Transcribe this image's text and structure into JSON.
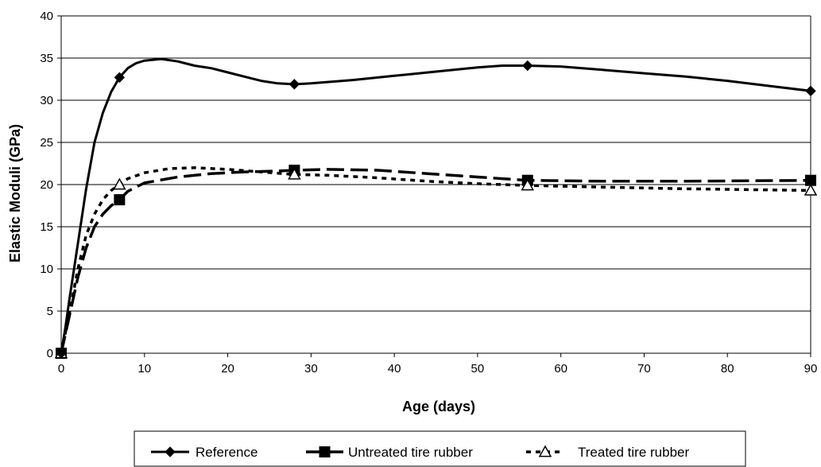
{
  "chart_data": {
    "type": "line",
    "title": "",
    "xlabel": "Age (days)",
    "ylabel": "Elastic Moduli (GPa)",
    "xlim": [
      0,
      90
    ],
    "ylim": [
      0,
      40
    ],
    "x_ticks": [
      "0",
      "10",
      "20",
      "30",
      "40",
      "50",
      "60",
      "70",
      "80",
      "90"
    ],
    "y_ticks": [
      "0",
      "5",
      "10",
      "15",
      "20",
      "25",
      "30",
      "35",
      "40"
    ],
    "grid": "horizontal",
    "legend_position": "bottom",
    "series": [
      {
        "name": "Reference",
        "marker": "diamond",
        "line_style": "solid",
        "points": [
          [
            0,
            0
          ],
          [
            7,
            32.7
          ],
          [
            28,
            31.9
          ],
          [
            56,
            34.1
          ],
          [
            90,
            31.1
          ]
        ],
        "curve": [
          [
            0,
            0
          ],
          [
            0.5,
            3
          ],
          [
            1,
            6.5
          ],
          [
            2,
            13
          ],
          [
            3,
            19.5
          ],
          [
            4,
            25
          ],
          [
            5,
            28.5
          ],
          [
            6,
            31
          ],
          [
            7,
            32.7
          ],
          [
            8,
            33.8
          ],
          [
            9,
            34.4
          ],
          [
            10,
            34.7
          ],
          [
            12,
            34.9
          ],
          [
            14,
            34.6
          ],
          [
            16,
            34.1
          ],
          [
            18,
            33.8
          ],
          [
            20,
            33.3
          ],
          [
            22,
            32.8
          ],
          [
            24,
            32.3
          ],
          [
            26,
            32.0
          ],
          [
            28,
            31.9
          ],
          [
            30,
            32.0
          ],
          [
            35,
            32.4
          ],
          [
            40,
            32.9
          ],
          [
            45,
            33.4
          ],
          [
            50,
            33.9
          ],
          [
            53,
            34.1
          ],
          [
            56,
            34.1
          ],
          [
            60,
            34.0
          ],
          [
            65,
            33.6
          ],
          [
            70,
            33.2
          ],
          [
            75,
            32.8
          ],
          [
            80,
            32.3
          ],
          [
            85,
            31.7
          ],
          [
            90,
            31.1
          ]
        ]
      },
      {
        "name": "Untreated tire rubber",
        "marker": "square",
        "line_style": "long-dash",
        "points": [
          [
            0,
            0
          ],
          [
            7,
            18.2
          ],
          [
            28,
            21.7
          ],
          [
            56,
            20.5
          ],
          [
            90,
            20.5
          ]
        ],
        "curve": [
          [
            0,
            0
          ],
          [
            1,
            4.5
          ],
          [
            2,
            9
          ],
          [
            3,
            12.5
          ],
          [
            4,
            15
          ],
          [
            5,
            16.5
          ],
          [
            6,
            17.5
          ],
          [
            7,
            18.2
          ],
          [
            8,
            19.2
          ],
          [
            10,
            20.2
          ],
          [
            14,
            20.9
          ],
          [
            18,
            21.3
          ],
          [
            22,
            21.5
          ],
          [
            26,
            21.6
          ],
          [
            28,
            21.7
          ],
          [
            32,
            21.8
          ],
          [
            38,
            21.7
          ],
          [
            44,
            21.3
          ],
          [
            50,
            20.9
          ],
          [
            56,
            20.5
          ],
          [
            65,
            20.4
          ],
          [
            75,
            20.4
          ],
          [
            90,
            20.5
          ]
        ]
      },
      {
        "name": "Treated tire rubber",
        "marker": "triangle",
        "line_style": "short-dash",
        "points": [
          [
            0,
            0
          ],
          [
            7,
            20.0
          ],
          [
            28,
            21.2
          ],
          [
            56,
            19.9
          ],
          [
            90,
            19.3
          ]
        ],
        "curve": [
          [
            0,
            0
          ],
          [
            1,
            4.8
          ],
          [
            2,
            10
          ],
          [
            3,
            14
          ],
          [
            4,
            16.5
          ],
          [
            5,
            18.2
          ],
          [
            6,
            19.3
          ],
          [
            7,
            20.0
          ],
          [
            8,
            20.7
          ],
          [
            10,
            21.4
          ],
          [
            13,
            21.9
          ],
          [
            16,
            22.0
          ],
          [
            20,
            21.8
          ],
          [
            24,
            21.5
          ],
          [
            28,
            21.2
          ],
          [
            32,
            21.1
          ],
          [
            38,
            20.8
          ],
          [
            44,
            20.4
          ],
          [
            50,
            20.1
          ],
          [
            56,
            19.9
          ],
          [
            65,
            19.7
          ],
          [
            75,
            19.5
          ],
          [
            90,
            19.3
          ]
        ]
      }
    ]
  }
}
